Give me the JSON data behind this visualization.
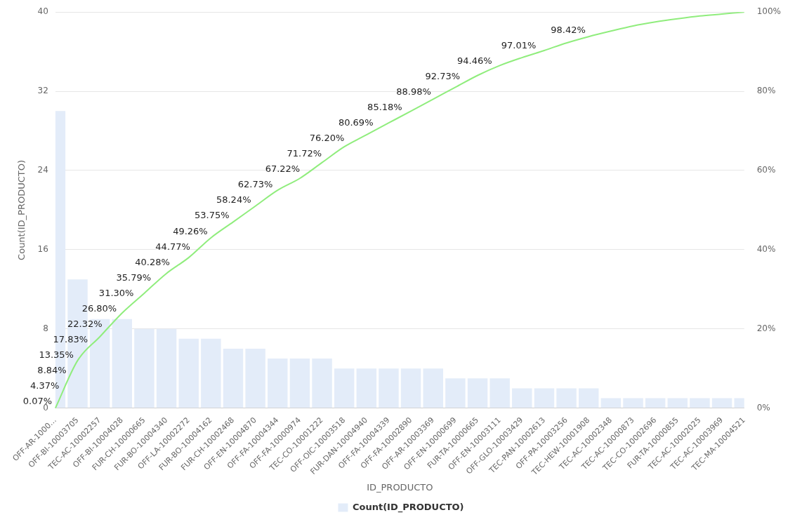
{
  "chart_data": {
    "type": "bar",
    "xlabel": "ID_PRODUCTO",
    "ylabel": "Count(ID_PRODUCTO)",
    "categories": [
      "OFF-AR-1000…",
      "OFF-BI-10003705",
      "TEC-AC-10002257",
      "OFF-BI-10004028",
      "FUR-CH-10000665",
      "FUR-BO-10004340",
      "OFF-LA-10002272",
      "FUR-BO-10004162",
      "FUR-CH-10002468",
      "OFF-EN-10004870",
      "OFF-FA-10004344",
      "OFF-FA-10000974",
      "TEC-CO-10001222",
      "OFF-OIC-10003518",
      "FUR-DAN-10004940",
      "OFF-FA-10004339",
      "OFF-FA-10002890",
      "OFF-AR-10003369",
      "OFF-EN-10000699",
      "FUR-TA-10000665",
      "OFF-EN-10003111",
      "OFF-GLO-10003429",
      "TEC-PAN-10002613",
      "OFF-PA-10003256",
      "TEC-HEW-10001908",
      "TEC-AC-10002348",
      "TEC-AC-10000873",
      "TEC-CO-10002696",
      "FUR-TA-10000855",
      "TEC-AC-10002025",
      "TEC-AC-10003969",
      "TEC-MA-10004521"
    ],
    "series": [
      {
        "name": "Count(ID_PRODUCTO)",
        "color": "#e3ecf9",
        "values": [
          30,
          13,
          9,
          9,
          8,
          8,
          7,
          7,
          6,
          6,
          5,
          5,
          5,
          4,
          4,
          4,
          4,
          4,
          3,
          3,
          3,
          2,
          2,
          2,
          2,
          1,
          1,
          1,
          1,
          1,
          1,
          1
        ]
      },
      {
        "type": "line",
        "axis": "y2",
        "color": "#90ed7d",
        "values": [
          0,
          12,
          18,
          24,
          29,
          34,
          38,
          43,
          47,
          51,
          55,
          58,
          62,
          66,
          69,
          72,
          75,
          78,
          81,
          84,
          86.5,
          88.5,
          90.3,
          92.2,
          93.8,
          95.2,
          96.5,
          97.5,
          98.3,
          99,
          99.5,
          100
        ]
      }
    ],
    "ylim": [
      0,
      40
    ],
    "yticks": [
      0,
      8,
      16,
      24,
      32,
      40
    ],
    "y2lim": [
      0,
      100
    ],
    "y2ticks": [
      {
        "value": 0,
        "label": "0%"
      },
      {
        "value": 20,
        "label": "20%"
      },
      {
        "value": 40,
        "label": "40%"
      },
      {
        "value": 60,
        "label": "60%"
      },
      {
        "value": 80,
        "label": "80%"
      },
      {
        "value": 100,
        "label": "100%"
      }
    ],
    "annotations": [
      "0.07%",
      "4.37%",
      "8.84%",
      "13.35%",
      "17.83%",
      "22.32%",
      "26.80%",
      "31.30%",
      "35.79%",
      "40.28%",
      "44.77%",
      "49.26%",
      "53.75%",
      "58.24%",
      "62.73%",
      "67.22%",
      "71.72%",
      "76.20%",
      "80.69%",
      "85.18%",
      "88.98%",
      "92.73%",
      "94.46%",
      "97.01%",
      "98.42%"
    ],
    "grid": "y",
    "legend": "bottom",
    "marker": "none",
    "line_style": "solid"
  }
}
